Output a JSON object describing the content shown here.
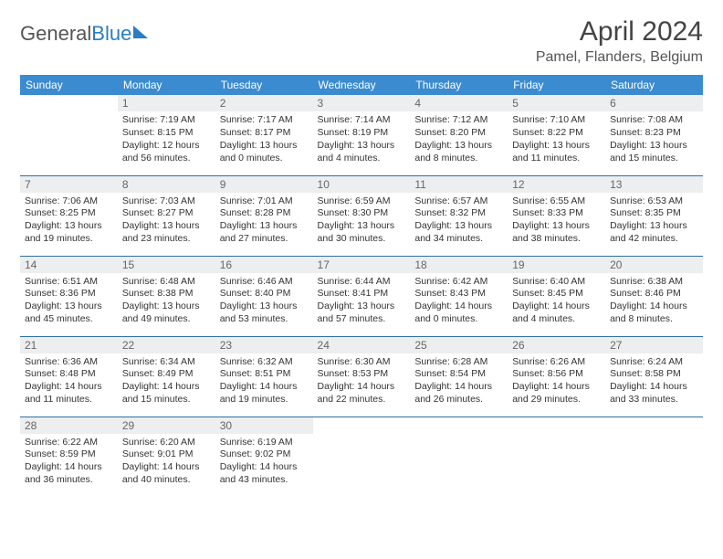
{
  "brand": {
    "part1": "General",
    "part2": "Blue"
  },
  "title": "April 2024",
  "location": "Pamel, Flanders, Belgium",
  "colors": {
    "header_bg": "#3b8bd0",
    "header_text": "#ffffff",
    "row_divider": "#2f6fa8",
    "daynum_bg": "#eceeef",
    "daynum_text": "#666666",
    "body_text": "#333333",
    "page_bg": "#ffffff"
  },
  "typography": {
    "month_title_fontsize": 30,
    "location_fontsize": 16,
    "dow_fontsize": 12,
    "daynum_fontsize": 12,
    "cell_fontsize": 10.5
  },
  "layout": {
    "columns": 7,
    "first_day_column_index": 1,
    "total_days": 30
  },
  "dow": [
    "Sunday",
    "Monday",
    "Tuesday",
    "Wednesday",
    "Thursday",
    "Friday",
    "Saturday"
  ],
  "days": [
    {
      "n": 1,
      "sunrise": "7:19 AM",
      "sunset": "8:15 PM",
      "daylight": "12 hours and 56 minutes."
    },
    {
      "n": 2,
      "sunrise": "7:17 AM",
      "sunset": "8:17 PM",
      "daylight": "13 hours and 0 minutes."
    },
    {
      "n": 3,
      "sunrise": "7:14 AM",
      "sunset": "8:19 PM",
      "daylight": "13 hours and 4 minutes."
    },
    {
      "n": 4,
      "sunrise": "7:12 AM",
      "sunset": "8:20 PM",
      "daylight": "13 hours and 8 minutes."
    },
    {
      "n": 5,
      "sunrise": "7:10 AM",
      "sunset": "8:22 PM",
      "daylight": "13 hours and 11 minutes."
    },
    {
      "n": 6,
      "sunrise": "7:08 AM",
      "sunset": "8:23 PM",
      "daylight": "13 hours and 15 minutes."
    },
    {
      "n": 7,
      "sunrise": "7:06 AM",
      "sunset": "8:25 PM",
      "daylight": "13 hours and 19 minutes."
    },
    {
      "n": 8,
      "sunrise": "7:03 AM",
      "sunset": "8:27 PM",
      "daylight": "13 hours and 23 minutes."
    },
    {
      "n": 9,
      "sunrise": "7:01 AM",
      "sunset": "8:28 PM",
      "daylight": "13 hours and 27 minutes."
    },
    {
      "n": 10,
      "sunrise": "6:59 AM",
      "sunset": "8:30 PM",
      "daylight": "13 hours and 30 minutes."
    },
    {
      "n": 11,
      "sunrise": "6:57 AM",
      "sunset": "8:32 PM",
      "daylight": "13 hours and 34 minutes."
    },
    {
      "n": 12,
      "sunrise": "6:55 AM",
      "sunset": "8:33 PM",
      "daylight": "13 hours and 38 minutes."
    },
    {
      "n": 13,
      "sunrise": "6:53 AM",
      "sunset": "8:35 PM",
      "daylight": "13 hours and 42 minutes."
    },
    {
      "n": 14,
      "sunrise": "6:51 AM",
      "sunset": "8:36 PM",
      "daylight": "13 hours and 45 minutes."
    },
    {
      "n": 15,
      "sunrise": "6:48 AM",
      "sunset": "8:38 PM",
      "daylight": "13 hours and 49 minutes."
    },
    {
      "n": 16,
      "sunrise": "6:46 AM",
      "sunset": "8:40 PM",
      "daylight": "13 hours and 53 minutes."
    },
    {
      "n": 17,
      "sunrise": "6:44 AM",
      "sunset": "8:41 PM",
      "daylight": "13 hours and 57 minutes."
    },
    {
      "n": 18,
      "sunrise": "6:42 AM",
      "sunset": "8:43 PM",
      "daylight": "14 hours and 0 minutes."
    },
    {
      "n": 19,
      "sunrise": "6:40 AM",
      "sunset": "8:45 PM",
      "daylight": "14 hours and 4 minutes."
    },
    {
      "n": 20,
      "sunrise": "6:38 AM",
      "sunset": "8:46 PM",
      "daylight": "14 hours and 8 minutes."
    },
    {
      "n": 21,
      "sunrise": "6:36 AM",
      "sunset": "8:48 PM",
      "daylight": "14 hours and 11 minutes."
    },
    {
      "n": 22,
      "sunrise": "6:34 AM",
      "sunset": "8:49 PM",
      "daylight": "14 hours and 15 minutes."
    },
    {
      "n": 23,
      "sunrise": "6:32 AM",
      "sunset": "8:51 PM",
      "daylight": "14 hours and 19 minutes."
    },
    {
      "n": 24,
      "sunrise": "6:30 AM",
      "sunset": "8:53 PM",
      "daylight": "14 hours and 22 minutes."
    },
    {
      "n": 25,
      "sunrise": "6:28 AM",
      "sunset": "8:54 PM",
      "daylight": "14 hours and 26 minutes."
    },
    {
      "n": 26,
      "sunrise": "6:26 AM",
      "sunset": "8:56 PM",
      "daylight": "14 hours and 29 minutes."
    },
    {
      "n": 27,
      "sunrise": "6:24 AM",
      "sunset": "8:58 PM",
      "daylight": "14 hours and 33 minutes."
    },
    {
      "n": 28,
      "sunrise": "6:22 AM",
      "sunset": "8:59 PM",
      "daylight": "14 hours and 36 minutes."
    },
    {
      "n": 29,
      "sunrise": "6:20 AM",
      "sunset": "9:01 PM",
      "daylight": "14 hours and 40 minutes."
    },
    {
      "n": 30,
      "sunrise": "6:19 AM",
      "sunset": "9:02 PM",
      "daylight": "14 hours and 43 minutes."
    }
  ],
  "labels": {
    "sunrise": "Sunrise:",
    "sunset": "Sunset:",
    "daylight": "Daylight:"
  }
}
